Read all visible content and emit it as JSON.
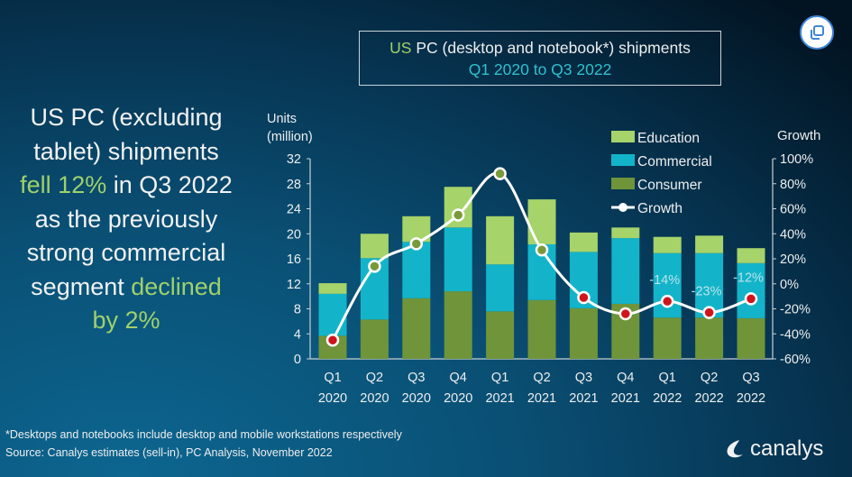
{
  "headline": {
    "l1": "US PC (excluding",
    "l2": "tablet) shipments",
    "l3a": "fell 12%",
    "l3b": " in Q3 2022",
    "l4": "as the previously",
    "l5": "strong commercial",
    "l6a": "segment ",
    "l6b": "declined",
    "l7": "by 2%"
  },
  "title_box": {
    "us": "US",
    "main": " PC (desktop and notebook*) shipments",
    "sub": "Q1 2020 to Q3 2022"
  },
  "footnote": {
    "line1": "*Desktops and notebooks include desktop and mobile workstations respectively",
    "line2": "Source: Canalys estimates (sell-in), PC Analysis, November 2022"
  },
  "logo": {
    "text": "canalys"
  },
  "copy_button": {
    "icon": "copy-icon"
  },
  "colors": {
    "education": "#a6d36a",
    "commercial": "#13b4c9",
    "consumer": "#6f943a",
    "growth_line": "#ffffff",
    "negative_marker": "#d0141b",
    "positive_marker": "#7a9a3a",
    "highlight_text": "#9fd16a"
  },
  "chart_data": {
    "type": "bar",
    "stacked": true,
    "title": "US PC (desktop and notebook*) shipments",
    "subtitle": "Q1 2020 to Q3 2022",
    "ylabel_line1": "Units",
    "ylabel_line2": "(million)",
    "y2label": "Growth",
    "ylim": [
      0,
      32
    ],
    "yticks": [
      "0",
      "4",
      "8",
      "12",
      "16",
      "20",
      "24",
      "28",
      "32"
    ],
    "y2lim": [
      -60,
      100
    ],
    "y2ticks": [
      "-60%",
      "-40%",
      "-20%",
      "0%",
      "20%",
      "40%",
      "60%",
      "80%",
      "100%"
    ],
    "categories": [
      [
        "Q1",
        "2020"
      ],
      [
        "Q2",
        "2020"
      ],
      [
        "Q3",
        "2020"
      ],
      [
        "Q4",
        "2020"
      ],
      [
        "Q1",
        "2021"
      ],
      [
        "Q2",
        "2021"
      ],
      [
        "Q3",
        "2021"
      ],
      [
        "Q4",
        "2021"
      ],
      [
        "Q1",
        "2022"
      ],
      [
        "Q2",
        "2022"
      ],
      [
        "Q3",
        "2022"
      ]
    ],
    "series": [
      {
        "name": "Consumer",
        "values": [
          3.7,
          6.3,
          9.7,
          10.8,
          7.6,
          9.4,
          8.1,
          8.8,
          6.6,
          6.6,
          6.5
        ]
      },
      {
        "name": "Commercial",
        "values": [
          6.7,
          9.8,
          9.0,
          10.2,
          7.5,
          8.9,
          9.0,
          10.5,
          10.3,
          10.3,
          8.8
        ]
      },
      {
        "name": "Education",
        "values": [
          1.7,
          3.9,
          4.1,
          6.5,
          7.7,
          7.2,
          3.1,
          1.7,
          2.6,
          2.8,
          2.4
        ]
      }
    ],
    "growth": {
      "name": "Growth",
      "axis": "right",
      "values": [
        -45,
        14,
        32,
        55,
        88,
        27,
        -11,
        -24,
        -14,
        -23,
        -12
      ]
    },
    "data_labels": [
      {
        "index": 8,
        "text": "-14%"
      },
      {
        "index": 9,
        "text": "-23%"
      },
      {
        "index": 10,
        "text": "-12%"
      }
    ],
    "legend": {
      "placement": "top-right",
      "items": [
        "Education",
        "Commercial",
        "Consumer",
        "Growth"
      ]
    },
    "grid": false
  }
}
